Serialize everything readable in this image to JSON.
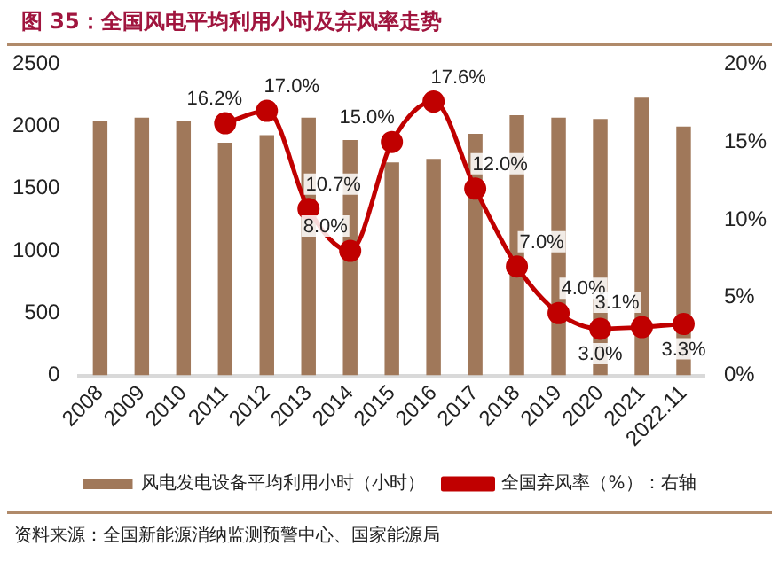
{
  "chart_data": {
    "type": "bar",
    "title": "图 35：全国风电平均利用小时及弃风率走势",
    "categories": [
      "2008",
      "2009",
      "2010",
      "2011",
      "2012",
      "2013",
      "2014",
      "2015",
      "2016",
      "2017",
      "2018",
      "2019",
      "2020",
      "2021",
      "2022.11"
    ],
    "series": [
      {
        "name": "风电发电设备平均利用小时（小时）",
        "color": "#a0785a",
        "values": [
          2040,
          2070,
          2040,
          1870,
          1930,
          2070,
          1890,
          1710,
          1740,
          1940,
          2090,
          2070,
          2060,
          2230,
          2000
        ]
      },
      {
        "name": "全国弃风率（%）：右轴",
        "type": "line",
        "axis": "y2",
        "color": "#c00000",
        "values": [
          null,
          null,
          null,
          16.2,
          17.0,
          10.7,
          8.0,
          15.0,
          17.6,
          12.0,
          7.0,
          4.0,
          3.0,
          3.1,
          3.3
        ],
        "value_labels": [
          null,
          null,
          null,
          "16.2%",
          "17.0%",
          "10.7%",
          "8.0%",
          "15.0%",
          "17.6%",
          "12.0%",
          "7.0%",
          "4.0%",
          "3.0%",
          "3.1%",
          "3.3%"
        ]
      }
    ],
    "ylim": [
      0,
      2500
    ],
    "yticks": [
      0,
      500,
      1000,
      1500,
      2000,
      2500
    ],
    "y2lim": [
      0,
      20
    ],
    "y2ticks": [
      {
        "value": 0,
        "label": "0%"
      },
      {
        "value": 5,
        "label": "5%"
      },
      {
        "value": 10,
        "label": "10%"
      },
      {
        "value": 15,
        "label": "15%"
      },
      {
        "value": 20,
        "label": "20%"
      }
    ],
    "grid": false,
    "legend": "bottom",
    "marker": "circle",
    "line_style": "solid",
    "annotations": [
      "资料来源：全国新能源消纳监测预警中心、国家能源局"
    ]
  }
}
